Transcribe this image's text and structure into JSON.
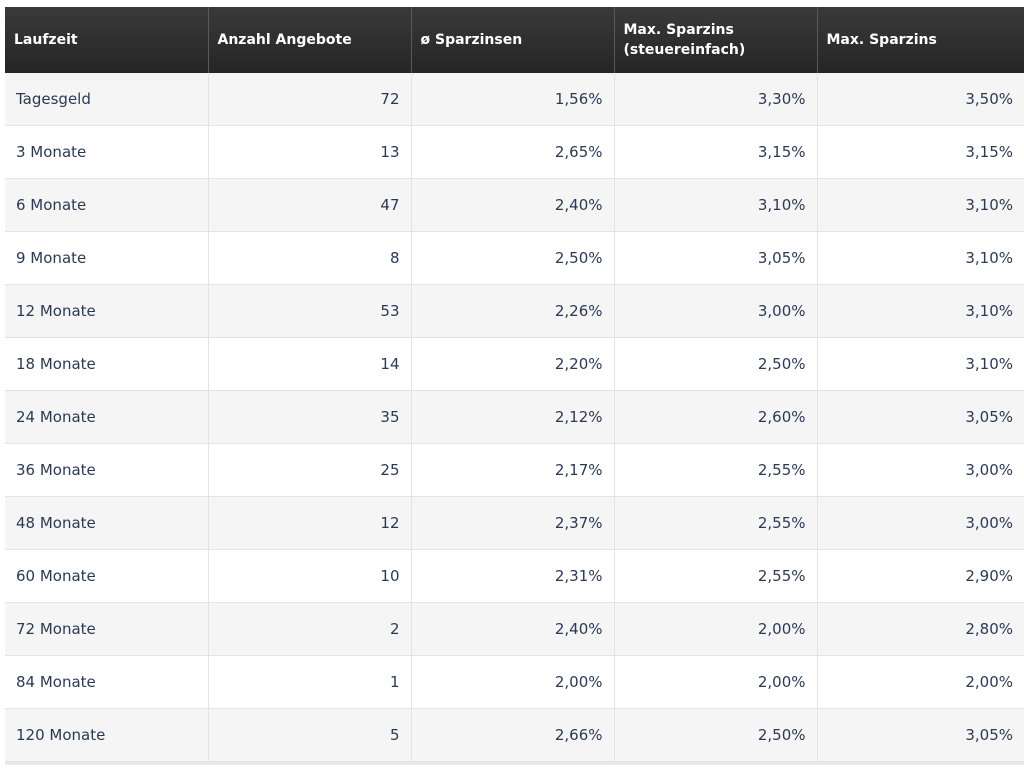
{
  "headers": [
    "Laufzeit",
    "Anzahl Angebote",
    "ø Sparzinsen",
    "Max. Sparzins (steuereinfach)",
    "Max. Sparzins"
  ],
  "rows": [
    [
      "Tagesgeld",
      "72",
      "1,56%",
      "3,30%",
      "3,50%"
    ],
    [
      "3 Monate",
      "13",
      "2,65%",
      "3,15%",
      "3,15%"
    ],
    [
      "6 Monate",
      "47",
      "2,40%",
      "3,10%",
      "3,10%"
    ],
    [
      "9 Monate",
      "8",
      "2,50%",
      "3,05%",
      "3,10%"
    ],
    [
      "12 Monate",
      "53",
      "2,26%",
      "3,00%",
      "3,10%"
    ],
    [
      "18 Monate",
      "14",
      "2,20%",
      "2,50%",
      "3,10%"
    ],
    [
      "24 Monate",
      "35",
      "2,12%",
      "2,60%",
      "3,05%"
    ],
    [
      "36 Monate",
      "25",
      "2,17%",
      "2,55%",
      "3,00%"
    ],
    [
      "48 Monate",
      "12",
      "2,37%",
      "2,55%",
      "3,00%"
    ],
    [
      "60 Monate",
      "10",
      "2,31%",
      "2,55%",
      "2,90%"
    ],
    [
      "72 Monate",
      "2",
      "2,40%",
      "2,00%",
      "2,80%"
    ],
    [
      "84 Monate",
      "1",
      "2,00%",
      "2,00%",
      "2,00%"
    ],
    [
      "120 Monate",
      "5",
      "2,66%",
      "2,50%",
      "3,05%"
    ]
  ],
  "colors": {
    "header_bg": "#2b2b2b",
    "header_text": "#ffffff",
    "row_alt_bg": "#f5f5f5",
    "row_bg": "#ffffff",
    "cell_text": "#2a3a55",
    "grid_line": "#e3e3e3"
  }
}
